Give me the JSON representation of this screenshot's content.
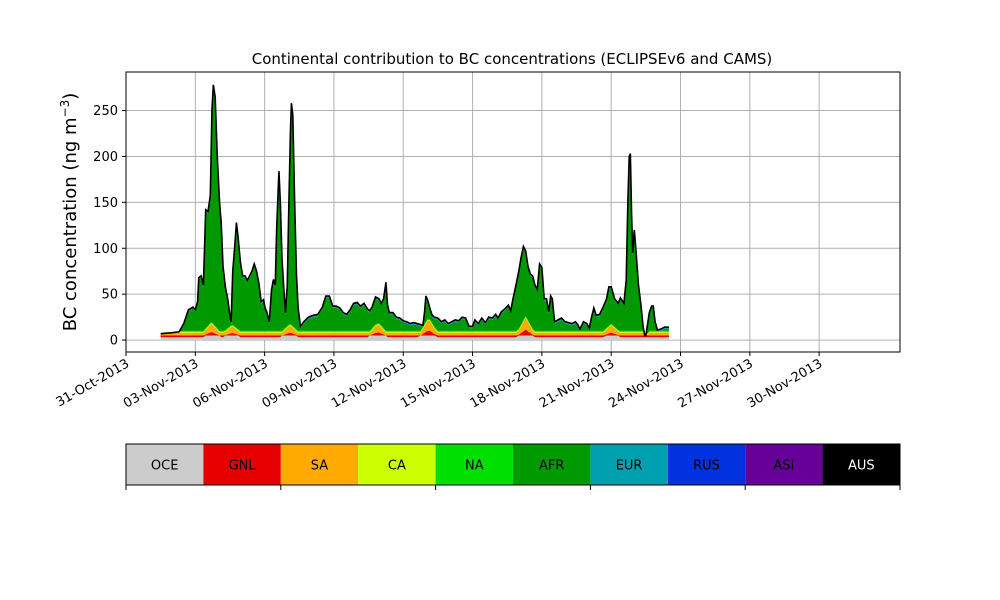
{
  "chart_data": {
    "type": "area",
    "title": "Continental contribution to BC concentrations (ECLIPSEv6 and CAMS)",
    "ylabel": "BC concentration (ng m",
    "ylabel_sup": "−3",
    "ylabel_close": ")",
    "xlabel": "",
    "stacked": true,
    "grid": true,
    "x_start": "2013-11-01T12:00",
    "x_end": "2013-12-01T12:00",
    "xlim": [
      "2013-10-31T00:00",
      "2013-12-03T12:00"
    ],
    "ylim": [
      -13,
      292
    ],
    "xticks": [
      {
        "date": "2013-10-31",
        "label": "31-Oct-2013"
      },
      {
        "date": "2013-11-03",
        "label": "03-Nov-2013"
      },
      {
        "date": "2013-11-06",
        "label": "06-Nov-2013"
      },
      {
        "date": "2013-11-09",
        "label": "09-Nov-2013"
      },
      {
        "date": "2013-11-12",
        "label": "12-Nov-2013"
      },
      {
        "date": "2013-11-15",
        "label": "15-Nov-2013"
      },
      {
        "date": "2013-11-18",
        "label": "18-Nov-2013"
      },
      {
        "date": "2013-11-21",
        "label": "21-Nov-2013"
      },
      {
        "date": "2013-11-24",
        "label": "24-Nov-2013"
      },
      {
        "date": "2013-11-27",
        "label": "27-Nov-2013"
      },
      {
        "date": "2013-11-30",
        "label": "30-Nov-2013"
      }
    ],
    "yticks": [
      0,
      50,
      100,
      150,
      200,
      250
    ],
    "total": [
      [
        0.0,
        7
      ],
      [
        0.5,
        8
      ],
      [
        0.8,
        9
      ],
      [
        1.0,
        18
      ],
      [
        1.2,
        33
      ],
      [
        1.4,
        36
      ],
      [
        1.5,
        33
      ],
      [
        1.6,
        42
      ],
      [
        1.65,
        68
      ],
      [
        1.75,
        70
      ],
      [
        1.85,
        60
      ],
      [
        1.95,
        142
      ],
      [
        2.05,
        140
      ],
      [
        2.15,
        158
      ],
      [
        2.22,
        250
      ],
      [
        2.28,
        278
      ],
      [
        2.36,
        265
      ],
      [
        2.45,
        200
      ],
      [
        2.55,
        150
      ],
      [
        2.62,
        128
      ],
      [
        2.7,
        80
      ],
      [
        2.8,
        58
      ],
      [
        2.9,
        45
      ],
      [
        2.98,
        30
      ],
      [
        3.05,
        20
      ],
      [
        3.12,
        75
      ],
      [
        3.2,
        100
      ],
      [
        3.28,
        128
      ],
      [
        3.36,
        110
      ],
      [
        3.45,
        85
      ],
      [
        3.55,
        70
      ],
      [
        3.65,
        70
      ],
      [
        3.75,
        65
      ],
      [
        3.85,
        70
      ],
      [
        3.95,
        75
      ],
      [
        4.05,
        83
      ],
      [
        4.15,
        75
      ],
      [
        4.25,
        62
      ],
      [
        4.35,
        42
      ],
      [
        4.45,
        44
      ],
      [
        4.52,
        35
      ],
      [
        4.6,
        30
      ],
      [
        4.7,
        20
      ],
      [
        4.8,
        55
      ],
      [
        4.88,
        66
      ],
      [
        4.96,
        60
      ],
      [
        5.02,
        120
      ],
      [
        5.08,
        160
      ],
      [
        5.12,
        184
      ],
      [
        5.18,
        150
      ],
      [
        5.25,
        90
      ],
      [
        5.32,
        60
      ],
      [
        5.4,
        30
      ],
      [
        5.48,
        60
      ],
      [
        5.55,
        150
      ],
      [
        5.62,
        230
      ],
      [
        5.66,
        258
      ],
      [
        5.72,
        245
      ],
      [
        5.8,
        150
      ],
      [
        5.88,
        70
      ],
      [
        5.95,
        35
      ],
      [
        6.05,
        15
      ],
      [
        6.2,
        20
      ],
      [
        6.4,
        25
      ],
      [
        6.6,
        27
      ],
      [
        6.8,
        28
      ],
      [
        7.0,
        36
      ],
      [
        7.15,
        48
      ],
      [
        7.3,
        48
      ],
      [
        7.45,
        37
      ],
      [
        7.6,
        37
      ],
      [
        7.75,
        35
      ],
      [
        7.9,
        30
      ],
      [
        8.05,
        28
      ],
      [
        8.2,
        33
      ],
      [
        8.35,
        40
      ],
      [
        8.5,
        41
      ],
      [
        8.65,
        37
      ],
      [
        8.8,
        40
      ],
      [
        8.95,
        34
      ],
      [
        9.05,
        32
      ],
      [
        9.15,
        36
      ],
      [
        9.3,
        47
      ],
      [
        9.45,
        45
      ],
      [
        9.55,
        40
      ],
      [
        9.65,
        45
      ],
      [
        9.75,
        63
      ],
      [
        9.82,
        38
      ],
      [
        9.9,
        30
      ],
      [
        10.05,
        30
      ],
      [
        10.2,
        25
      ],
      [
        10.35,
        24
      ],
      [
        10.5,
        21
      ],
      [
        10.65,
        20
      ],
      [
        10.8,
        18
      ],
      [
        10.95,
        19
      ],
      [
        11.1,
        18
      ],
      [
        11.25,
        17
      ],
      [
        11.35,
        16
      ],
      [
        11.42,
        30
      ],
      [
        11.48,
        48
      ],
      [
        11.55,
        44
      ],
      [
        11.65,
        35
      ],
      [
        11.75,
        27
      ],
      [
        11.85,
        25
      ],
      [
        12.0,
        24
      ],
      [
        12.15,
        20
      ],
      [
        12.3,
        22
      ],
      [
        12.45,
        18
      ],
      [
        12.6,
        20
      ],
      [
        12.75,
        22
      ],
      [
        12.9,
        21
      ],
      [
        13.05,
        25
      ],
      [
        13.2,
        24
      ],
      [
        13.35,
        15
      ],
      [
        13.5,
        15
      ],
      [
        13.6,
        22
      ],
      [
        13.75,
        18
      ],
      [
        13.9,
        24
      ],
      [
        14.05,
        19
      ],
      [
        14.2,
        25
      ],
      [
        14.35,
        24
      ],
      [
        14.5,
        28
      ],
      [
        14.6,
        24
      ],
      [
        14.75,
        31
      ],
      [
        14.9,
        34
      ],
      [
        15.05,
        38
      ],
      [
        15.15,
        32
      ],
      [
        15.25,
        45
      ],
      [
        15.38,
        60
      ],
      [
        15.5,
        75
      ],
      [
        15.6,
        90
      ],
      [
        15.7,
        102
      ],
      [
        15.8,
        97
      ],
      [
        15.9,
        80
      ],
      [
        16.0,
        72
      ],
      [
        16.1,
        70
      ],
      [
        16.2,
        60
      ],
      [
        16.3,
        55
      ],
      [
        16.4,
        83
      ],
      [
        16.5,
        79
      ],
      [
        16.6,
        45
      ],
      [
        16.7,
        45
      ],
      [
        16.8,
        31
      ],
      [
        16.88,
        48
      ],
      [
        16.95,
        45
      ],
      [
        17.05,
        20
      ],
      [
        17.2,
        22
      ],
      [
        17.35,
        24
      ],
      [
        17.5,
        20
      ],
      [
        17.65,
        19
      ],
      [
        17.8,
        18
      ],
      [
        17.95,
        20
      ],
      [
        18.05,
        17
      ],
      [
        18.15,
        12
      ],
      [
        18.3,
        20
      ],
      [
        18.45,
        18
      ],
      [
        18.55,
        13
      ],
      [
        18.65,
        25
      ],
      [
        18.75,
        35
      ],
      [
        18.85,
        27
      ],
      [
        19.0,
        28
      ],
      [
        19.15,
        36
      ],
      [
        19.3,
        45
      ],
      [
        19.4,
        58
      ],
      [
        19.5,
        58
      ],
      [
        19.65,
        45
      ],
      [
        19.8,
        40
      ],
      [
        19.9,
        46
      ],
      [
        20.05,
        40
      ],
      [
        20.15,
        65
      ],
      [
        20.22,
        150
      ],
      [
        20.28,
        200
      ],
      [
        20.33,
        203
      ],
      [
        20.38,
        140
      ],
      [
        20.43,
        95
      ],
      [
        20.5,
        120
      ],
      [
        20.58,
        95
      ],
      [
        20.68,
        60
      ],
      [
        20.78,
        40
      ],
      [
        20.88,
        15
      ],
      [
        20.95,
        5
      ],
      [
        21.0,
        5
      ],
      [
        21.15,
        30
      ],
      [
        21.25,
        37
      ],
      [
        21.32,
        37
      ],
      [
        21.4,
        20
      ],
      [
        21.5,
        11
      ],
      [
        21.65,
        12
      ],
      [
        21.8,
        14
      ],
      [
        22.0,
        14
      ]
    ],
    "band_boundaries": {
      "OCE_top": 3,
      "GNL_top": 5,
      "SA_top": 8,
      "CA_top": 9,
      "NA_top": 10,
      "AFR_top_offset": -2,
      "EUR_top_offset": -1,
      "RUS_top_offset": -0.5,
      "ASI_top_offset": -0.2
    },
    "sa_bumps": [
      [
        2.2,
        10
      ],
      [
        3.1,
        7
      ],
      [
        5.6,
        8
      ],
      [
        9.4,
        10
      ],
      [
        11.6,
        15
      ],
      [
        15.8,
        16
      ],
      [
        19.5,
        8
      ]
    ],
    "series": [
      {
        "name": "OCE",
        "color": "#cccccc"
      },
      {
        "name": "GNL",
        "color": "#e60000"
      },
      {
        "name": "SA",
        "color": "#ffaa00"
      },
      {
        "name": "CA",
        "color": "#ccff00"
      },
      {
        "name": "NA",
        "color": "#00e000"
      },
      {
        "name": "AFR",
        "color": "#009900"
      },
      {
        "name": "EUR",
        "color": "#00a0b0"
      },
      {
        "name": "RUS",
        "color": "#0033e0"
      },
      {
        "name": "ASI",
        "color": "#660099"
      },
      {
        "name": "AUS",
        "color": "#000000"
      }
    ],
    "legend_placement": "bottom"
  }
}
